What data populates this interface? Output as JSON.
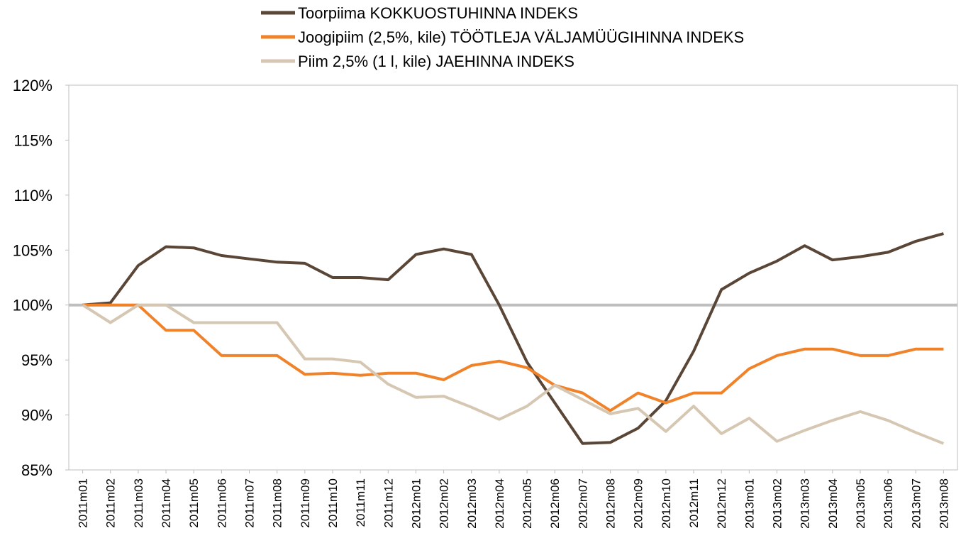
{
  "chart_data": {
    "type": "line",
    "categories": [
      "2011m01",
      "2011m02",
      "2011m03",
      "2011m04",
      "2011m05",
      "2011m06",
      "2011m07",
      "2011m08",
      "2011m09",
      "2011m10",
      "2011m11",
      "2011m12",
      "2012m01",
      "2012m02",
      "2012m03",
      "2012m04",
      "2012m05",
      "2012m06",
      "2012m07",
      "2012m08",
      "2012m09",
      "2012m10",
      "2012m11",
      "2012m12",
      "2013m01",
      "2013m02",
      "2013m03",
      "2013m04",
      "2013m05",
      "2013m06",
      "2013m07",
      "2013m08"
    ],
    "series": [
      {
        "name": "Toorpiima KOKKUOSTUHINNA INDEKS",
        "color": "#5a4637",
        "values": [
          100,
          100.2,
          103.6,
          105.3,
          105.2,
          104.5,
          104.2,
          103.9,
          103.8,
          102.5,
          102.5,
          102.3,
          104.6,
          105.1,
          104.6,
          100,
          94.8,
          91.1,
          87.4,
          87.5,
          88.8,
          91.3,
          95.8,
          101.4,
          102.9,
          104,
          105.4,
          104.1,
          104.4,
          104.8,
          105.8,
          106.5
        ]
      },
      {
        "name": "Joogipiim (2,5%, kile) TÖÖTLEJA VÄLJAMÜÜGIHINNA INDEKS",
        "color": "#f0832a",
        "values": [
          100,
          100,
          100,
          97.7,
          97.7,
          95.4,
          95.4,
          95.4,
          93.7,
          93.8,
          93.6,
          93.8,
          93.8,
          93.2,
          94.5,
          94.9,
          94.3,
          92.7,
          92,
          90.4,
          92,
          91.1,
          92,
          92,
          94.2,
          95.4,
          96,
          96,
          95.4,
          95.4,
          96,
          96
        ]
      },
      {
        "name": "Piim 2,5% (1 l, kile) JAEHINNA INDEKS",
        "color": "#d6c7b3",
        "values": [
          100,
          98.4,
          100,
          100,
          98.4,
          98.4,
          98.4,
          98.4,
          95.1,
          95.1,
          94.8,
          92.8,
          91.6,
          91.7,
          90.7,
          89.6,
          90.8,
          92.7,
          91.4,
          90.1,
          90.6,
          88.5,
          90.8,
          88.3,
          89.7,
          87.6,
          88.6,
          89.5,
          90.3,
          89.5,
          88.4,
          87.4
        ]
      }
    ],
    "reference_line": 100,
    "ylim": [
      85,
      120
    ],
    "yticks": [
      {
        "value": 85,
        "label": "85%"
      },
      {
        "value": 90,
        "label": "90%"
      },
      {
        "value": 95,
        "label": "95%"
      },
      {
        "value": 100,
        "label": "100%"
      },
      {
        "value": 105,
        "label": "105%"
      },
      {
        "value": 110,
        "label": "110%"
      },
      {
        "value": 115,
        "label": "115%"
      },
      {
        "value": 120,
        "label": "120%"
      }
    ],
    "legend": "top"
  }
}
